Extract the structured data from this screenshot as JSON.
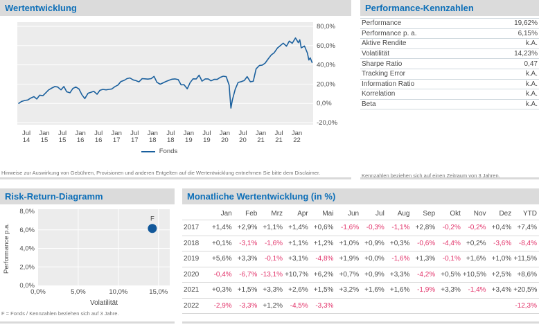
{
  "colors": {
    "accent_blue": "#0d6fb8",
    "header_bar": "#dbdbdb",
    "line_blue": "#195f9d",
    "dot_blue": "#12589a",
    "negative_value": "#e2336a",
    "plot_background": "#ececec",
    "gridline": "#ffffff",
    "text_gray": "#4a4a4a"
  },
  "panels": {
    "wertentwicklung": {
      "title": "Wertentwicklung",
      "legend_label": "Fonds",
      "disclaimer": "Hinweise zur Auswirkung von Gebühren, Provisionen und anderen Entgelten auf die Wertentwicklung entnehmen Sie bitte dem Disclaimer."
    },
    "kennzahlen": {
      "title": "Performance-Kennzahlen",
      "rows": [
        {
          "label": "Performance",
          "value": "19,62%"
        },
        {
          "label": "Performance p. a.",
          "value": "6,15%"
        },
        {
          "label": "Aktive Rendite",
          "value": "k.A."
        },
        {
          "label": "Volatilität",
          "value": "14,23%"
        },
        {
          "label": "Sharpe Ratio",
          "value": "0,47"
        },
        {
          "label": "Tracking Error",
          "value": "k.A."
        },
        {
          "label": "Information Ratio",
          "value": "k.A."
        },
        {
          "label": "Korrelation",
          "value": "k.A."
        },
        {
          "label": "Beta",
          "value": "k.A."
        }
      ],
      "footnote": "Kennzahlen beziehen sich auf einen Zeitraum von 3 Jahren."
    },
    "risk_return": {
      "title": "Risk-Return-Diagramm",
      "footnote": "F = Fonds / Kennzahlen beziehen sich auf 3 Jahre."
    },
    "monthly": {
      "title": "Monatliche Wertentwicklung (in %)",
      "columns": [
        "Jan",
        "Feb",
        "Mrz",
        "Apr",
        "Mai",
        "Jun",
        "Jul",
        "Aug",
        "Sep",
        "Okt",
        "Nov",
        "Dez",
        "YTD"
      ],
      "rows": [
        {
          "year": "2017",
          "values": [
            "+1,4%",
            "+2,9%",
            "+1,1%",
            "+1,4%",
            "+0,6%",
            "-1,6%",
            "-0,3%",
            "-1,1%",
            "+2,8%",
            "-0,2%",
            "-0,2%",
            "+0,4%",
            "+7,4%"
          ]
        },
        {
          "year": "2018",
          "values": [
            "+0,1%",
            "-3,1%",
            "-1,6%",
            "+1,1%",
            "+1,2%",
            "+1,0%",
            "+0,9%",
            "+0,3%",
            "-0,6%",
            "-4,4%",
            "+0,2%",
            "-3,6%",
            "-8,4%"
          ]
        },
        {
          "year": "2019",
          "values": [
            "+5,6%",
            "+3,3%",
            "-0,1%",
            "+3,1%",
            "-4,8%",
            "+1,9%",
            "+0,0%",
            "-1,6%",
            "+1,3%",
            "-0,1%",
            "+1,6%",
            "+1,0%",
            "+11,5%"
          ]
        },
        {
          "year": "2020",
          "values": [
            "-0,4%",
            "-6,7%",
            "-13,1%",
            "+10,7%",
            "+6,2%",
            "+0,7%",
            "+0,9%",
            "+3,3%",
            "-4,2%",
            "+0,5%",
            "+10,5%",
            "+2,5%",
            "+8,6%"
          ]
        },
        {
          "year": "2021",
          "values": [
            "+0,3%",
            "+1,5%",
            "+3,3%",
            "+2,6%",
            "+1,5%",
            "+3,2%",
            "+1,6%",
            "+1,6%",
            "-1,9%",
            "+3,3%",
            "-1,4%",
            "+3,4%",
            "+20,5%"
          ]
        },
        {
          "year": "2022",
          "values": [
            "-2,9%",
            "-3,3%",
            "+1,2%",
            "-4,5%",
            "-3,3%",
            "",
            "",
            "",
            "",
            "",
            "",
            "",
            "-12,3%"
          ]
        }
      ]
    }
  },
  "chart_data": [
    {
      "type": "line",
      "title": "Wertentwicklung",
      "xlabel": "",
      "ylabel": "",
      "xlim": [
        2014.25,
        2022.45
      ],
      "ylim": [
        -20,
        80
      ],
      "grid": true,
      "legend_position": "bottom",
      "y_ticks": [
        {
          "v": 80,
          "label": "80,0%"
        },
        {
          "v": 60,
          "label": "60,0%"
        },
        {
          "v": 40,
          "label": "40,0%"
        },
        {
          "v": 20,
          "label": "20,0%"
        },
        {
          "v": 0,
          "label": "0,0%"
        },
        {
          "v": -20,
          "label": "-20,0%"
        }
      ],
      "x_ticks": [
        {
          "t": 2014.5,
          "month": "Jul",
          "year": "14"
        },
        {
          "t": 2015.0,
          "month": "Jan",
          "year": "15"
        },
        {
          "t": 2015.5,
          "month": "Jul",
          "year": "15"
        },
        {
          "t": 2016.0,
          "month": "Jan",
          "year": "16"
        },
        {
          "t": 2016.5,
          "month": "Jul",
          "year": "16"
        },
        {
          "t": 2017.0,
          "month": "Jan",
          "year": "17"
        },
        {
          "t": 2017.5,
          "month": "Jul",
          "year": "17"
        },
        {
          "t": 2018.0,
          "month": "Jan",
          "year": "18"
        },
        {
          "t": 2018.5,
          "month": "Jul",
          "year": "18"
        },
        {
          "t": 2019.0,
          "month": "Jan",
          "year": "19"
        },
        {
          "t": 2019.5,
          "month": "Jul",
          "year": "19"
        },
        {
          "t": 2020.0,
          "month": "Jan",
          "year": "20"
        },
        {
          "t": 2020.5,
          "month": "Jul",
          "year": "20"
        },
        {
          "t": 2021.0,
          "month": "Jan",
          "year": "21"
        },
        {
          "t": 2021.5,
          "month": "Jul",
          "year": "21"
        },
        {
          "t": 2022.0,
          "month": "Jan",
          "year": "22"
        }
      ],
      "series": [
        {
          "name": "Fonds",
          "color": "#195f9d",
          "points": [
            [
              2014.29,
              0
            ],
            [
              2014.37,
              2
            ],
            [
              2014.46,
              3
            ],
            [
              2014.54,
              3.5
            ],
            [
              2014.62,
              5.5
            ],
            [
              2014.71,
              7
            ],
            [
              2014.79,
              4.5
            ],
            [
              2014.87,
              8.5
            ],
            [
              2014.96,
              8
            ],
            [
              2015.04,
              11
            ],
            [
              2015.12,
              14
            ],
            [
              2015.21,
              16
            ],
            [
              2015.29,
              17.5
            ],
            [
              2015.37,
              17
            ],
            [
              2015.46,
              14
            ],
            [
              2015.54,
              17.5
            ],
            [
              2015.62,
              12
            ],
            [
              2015.71,
              11
            ],
            [
              2015.79,
              15.5
            ],
            [
              2015.87,
              17
            ],
            [
              2015.96,
              15
            ],
            [
              2016.04,
              9
            ],
            [
              2016.12,
              5
            ],
            [
              2016.21,
              10.5
            ],
            [
              2016.29,
              11.5
            ],
            [
              2016.37,
              12.5
            ],
            [
              2016.46,
              9.5
            ],
            [
              2016.54,
              13.5
            ],
            [
              2016.62,
              14.5
            ],
            [
              2016.71,
              14
            ],
            [
              2016.79,
              14.5
            ],
            [
              2016.87,
              15
            ],
            [
              2016.96,
              17.5
            ],
            [
              2017.04,
              19.1
            ],
            [
              2017.12,
              22.6
            ],
            [
              2017.21,
              23.9
            ],
            [
              2017.29,
              25.7
            ],
            [
              2017.37,
              26.4
            ],
            [
              2017.46,
              24.4
            ],
            [
              2017.54,
              23.6
            ],
            [
              2017.62,
              22.3
            ],
            [
              2017.71,
              25.7
            ],
            [
              2017.79,
              25.5
            ],
            [
              2017.87,
              25.2
            ],
            [
              2017.96,
              25.7
            ],
            [
              2018.04,
              28
            ],
            [
              2018.12,
              21.9
            ],
            [
              2018.21,
              19.9
            ],
            [
              2018.29,
              21.3
            ],
            [
              2018.37,
              22.7
            ],
            [
              2018.46,
              24
            ],
            [
              2018.54,
              25.1
            ],
            [
              2018.62,
              25.4
            ],
            [
              2018.71,
              24.7
            ],
            [
              2018.79,
              19.2
            ],
            [
              2018.87,
              19.4
            ],
            [
              2018.96,
              15.1
            ],
            [
              2019.04,
              21.5
            ],
            [
              2019.12,
              25.5
            ],
            [
              2019.21,
              25.4
            ],
            [
              2019.29,
              29.3
            ],
            [
              2019.37,
              23.1
            ],
            [
              2019.46,
              25.4
            ],
            [
              2019.54,
              25.4
            ],
            [
              2019.62,
              23.4
            ],
            [
              2019.71,
              25
            ],
            [
              2019.79,
              24.9
            ],
            [
              2019.87,
              26.9
            ],
            [
              2019.96,
              28.2
            ],
            [
              2020.04,
              27.7
            ],
            [
              2020.12,
              19.1
            ],
            [
              2020.17,
              -5
            ],
            [
              2020.21,
              3.5
            ],
            [
              2020.29,
              14.6
            ],
            [
              2020.37,
              21.7
            ],
            [
              2020.46,
              22.6
            ],
            [
              2020.54,
              23.7
            ],
            [
              2020.62,
              27.8
            ],
            [
              2020.71,
              22.4
            ],
            [
              2020.79,
              23
            ],
            [
              2020.87,
              35.9
            ],
            [
              2020.96,
              39.3
            ],
            [
              2021.04,
              39.7
            ],
            [
              2021.12,
              41.8
            ],
            [
              2021.21,
              46.5
            ],
            [
              2021.29,
              50.3
            ],
            [
              2021.37,
              52.6
            ],
            [
              2021.46,
              57.4
            ],
            [
              2021.54,
              59.9
            ],
            [
              2021.62,
              62.5
            ],
            [
              2021.71,
              59.4
            ],
            [
              2021.79,
              64.7
            ],
            [
              2021.87,
              62.4
            ],
            [
              2021.96,
              67.9
            ],
            [
              2022.04,
              63
            ],
            [
              2022.08,
              66
            ],
            [
              2022.12,
              57.6
            ],
            [
              2022.21,
              59.5
            ],
            [
              2022.29,
              52.3
            ],
            [
              2022.33,
              45
            ],
            [
              2022.37,
              47.3
            ],
            [
              2022.42,
              42.5
            ]
          ]
        }
      ]
    },
    {
      "type": "scatter",
      "title": "Risk-Return-Diagramm",
      "xlabel": "Volatilität",
      "ylabel": "Performance p.a.",
      "xlim": [
        0,
        16.4
      ],
      "ylim": [
        0,
        8
      ],
      "grid": true,
      "x_ticks": [
        {
          "v": 0,
          "label": "0,0%"
        },
        {
          "v": 5,
          "label": "5,0%"
        },
        {
          "v": 10,
          "label": "10,0%"
        },
        {
          "v": 15,
          "label": "15,0%"
        }
      ],
      "y_ticks": [
        {
          "v": 0,
          "label": "0,0%"
        },
        {
          "v": 2,
          "label": "2,0%"
        },
        {
          "v": 4,
          "label": "4,0%"
        },
        {
          "v": 6,
          "label": "6,0%"
        },
        {
          "v": 8,
          "label": "8,0%"
        }
      ],
      "points": [
        {
          "label": "F",
          "x": 14.23,
          "y": 6.15,
          "color": "#12589a"
        }
      ]
    }
  ]
}
